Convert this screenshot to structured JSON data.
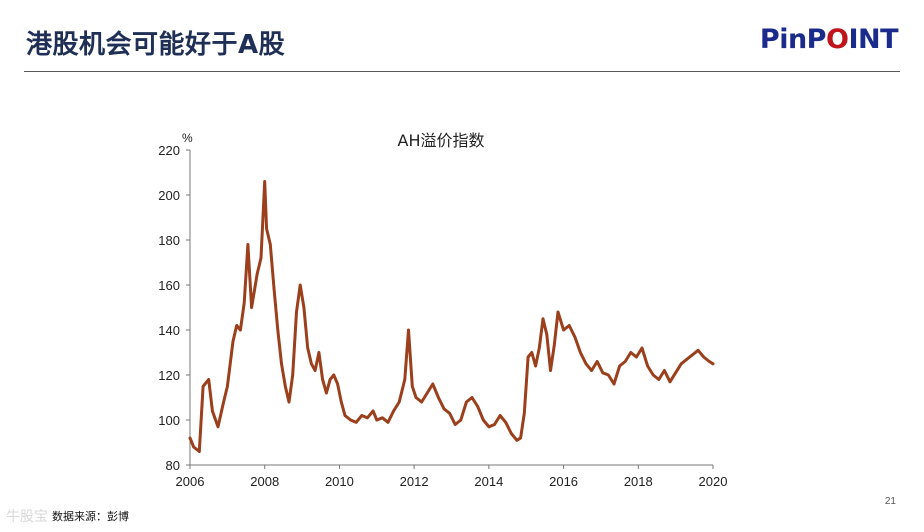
{
  "slide": {
    "title": "港股机会可能好于A股",
    "logo_part1": "PinP",
    "logo_part2": "O",
    "logo_part3": "INT",
    "page_number": "21",
    "source": "数据来源：彭博",
    "watermark": "牛股宝"
  },
  "colors": {
    "title": "#1f2f55",
    "logo_blue": "#1a2b8c",
    "logo_red": "#c0141c",
    "series": "#9b3f1c"
  },
  "chart_data": {
    "type": "line",
    "title": "AH溢价指数",
    "ylabel": "%",
    "xlabel": "",
    "xlim": [
      2006,
      2020
    ],
    "ylim": [
      80,
      220
    ],
    "x_ticks": [
      "2006",
      "2008",
      "2010",
      "2012",
      "2014",
      "2016",
      "2018",
      "2020"
    ],
    "y_ticks": [
      "80",
      "100",
      "120",
      "140",
      "160",
      "180",
      "200",
      "220"
    ],
    "grid": false,
    "legend": "none",
    "series": [
      {
        "name": "",
        "x": [
          2006.0,
          2006.1,
          2006.25,
          2006.35,
          2006.5,
          2006.6,
          2006.75,
          2006.9,
          2007.0,
          2007.15,
          2007.25,
          2007.35,
          2007.45,
          2007.55,
          2007.65,
          2007.8,
          2007.9,
          2008.0,
          2008.05,
          2008.15,
          2008.25,
          2008.35,
          2008.45,
          2008.55,
          2008.65,
          2008.75,
          2008.85,
          2008.95,
          2009.05,
          2009.15,
          2009.25,
          2009.35,
          2009.45,
          2009.55,
          2009.65,
          2009.75,
          2009.85,
          2009.95,
          2010.05,
          2010.15,
          2010.3,
          2010.45,
          2010.6,
          2010.75,
          2010.9,
          2011.0,
          2011.15,
          2011.3,
          2011.45,
          2011.6,
          2011.75,
          2011.85,
          2011.95,
          2012.05,
          2012.2,
          2012.35,
          2012.5,
          2012.65,
          2012.8,
          2012.95,
          2013.1,
          2013.25,
          2013.4,
          2013.55,
          2013.7,
          2013.85,
          2014.0,
          2014.15,
          2014.3,
          2014.45,
          2014.6,
          2014.75,
          2014.85,
          2014.95,
          2015.05,
          2015.15,
          2015.25,
          2015.35,
          2015.45,
          2015.55,
          2015.65,
          2015.75,
          2015.85,
          2016.0,
          2016.15,
          2016.3,
          2016.45,
          2016.6,
          2016.75,
          2016.9,
          2017.05,
          2017.2,
          2017.35,
          2017.5,
          2017.65,
          2017.8,
          2017.95,
          2018.1,
          2018.25,
          2018.4,
          2018.55,
          2018.7,
          2018.85,
          2019.0,
          2019.15,
          2019.3,
          2019.45,
          2019.6,
          2019.75,
          2019.9,
          2020.0
        ],
        "values": [
          92,
          88,
          86,
          115,
          118,
          104,
          97,
          108,
          115,
          135,
          142,
          140,
          152,
          178,
          150,
          165,
          172,
          206,
          185,
          178,
          158,
          140,
          125,
          115,
          108,
          120,
          148,
          160,
          150,
          132,
          125,
          122,
          130,
          118,
          112,
          118,
          120,
          116,
          108,
          102,
          100,
          99,
          102,
          101,
          104,
          100,
          101,
          99,
          104,
          108,
          118,
          140,
          115,
          110,
          108,
          112,
          116,
          110,
          105,
          103,
          98,
          100,
          108,
          110,
          106,
          100,
          97,
          98,
          102,
          99,
          94,
          91,
          92,
          103,
          128,
          130,
          124,
          132,
          145,
          138,
          122,
          133,
          148,
          140,
          142,
          137,
          130,
          125,
          122,
          126,
          121,
          120,
          116,
          124,
          126,
          130,
          128,
          132,
          124,
          120,
          118,
          122,
          117,
          121,
          125,
          127,
          129,
          131,
          128,
          126,
          125
        ]
      }
    ]
  }
}
